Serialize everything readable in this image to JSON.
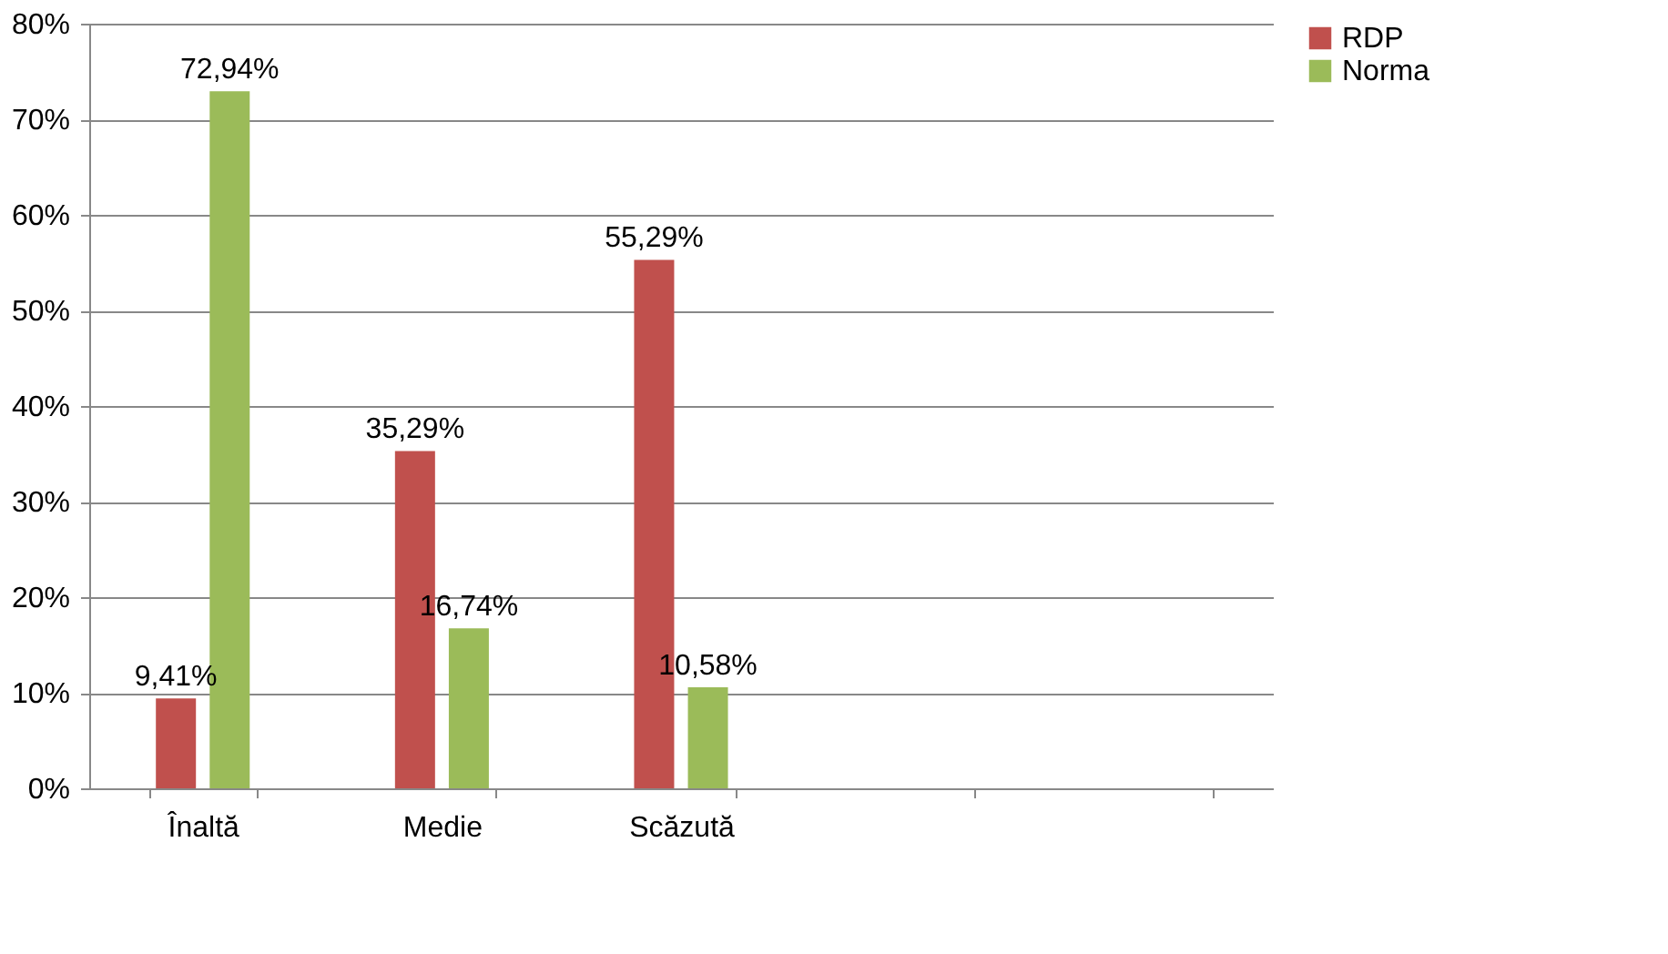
{
  "chart_data": {
    "type": "bar",
    "categories": [
      "Înaltă",
      "Medie",
      "Scăzută",
      null,
      null
    ],
    "series": [
      {
        "name": "RDP",
        "color": "#c0504d",
        "values": [
          9.41,
          35.29,
          55.29,
          null,
          null
        ],
        "value_labels": [
          "9,41%",
          "35,29%",
          "55,29%",
          null,
          null
        ]
      },
      {
        "name": "Norma",
        "color": "#9bbb59",
        "values": [
          72.94,
          16.74,
          10.58,
          null,
          null
        ],
        "value_labels": [
          "72,94%",
          "16,74%",
          "10,58%",
          null,
          null
        ]
      }
    ],
    "ylim": [
      0,
      80
    ],
    "yticks": [
      {
        "value": 0,
        "label": "0%"
      },
      {
        "value": 10,
        "label": "10%"
      },
      {
        "value": 20,
        "label": "20%"
      },
      {
        "value": 30,
        "label": "30%"
      },
      {
        "value": 40,
        "label": "40%"
      },
      {
        "value": 50,
        "label": "50%"
      },
      {
        "value": 60,
        "label": "60%"
      },
      {
        "value": 70,
        "label": "70%"
      },
      {
        "value": 80,
        "label": "80%"
      }
    ],
    "grid": "y",
    "legend": "right"
  }
}
